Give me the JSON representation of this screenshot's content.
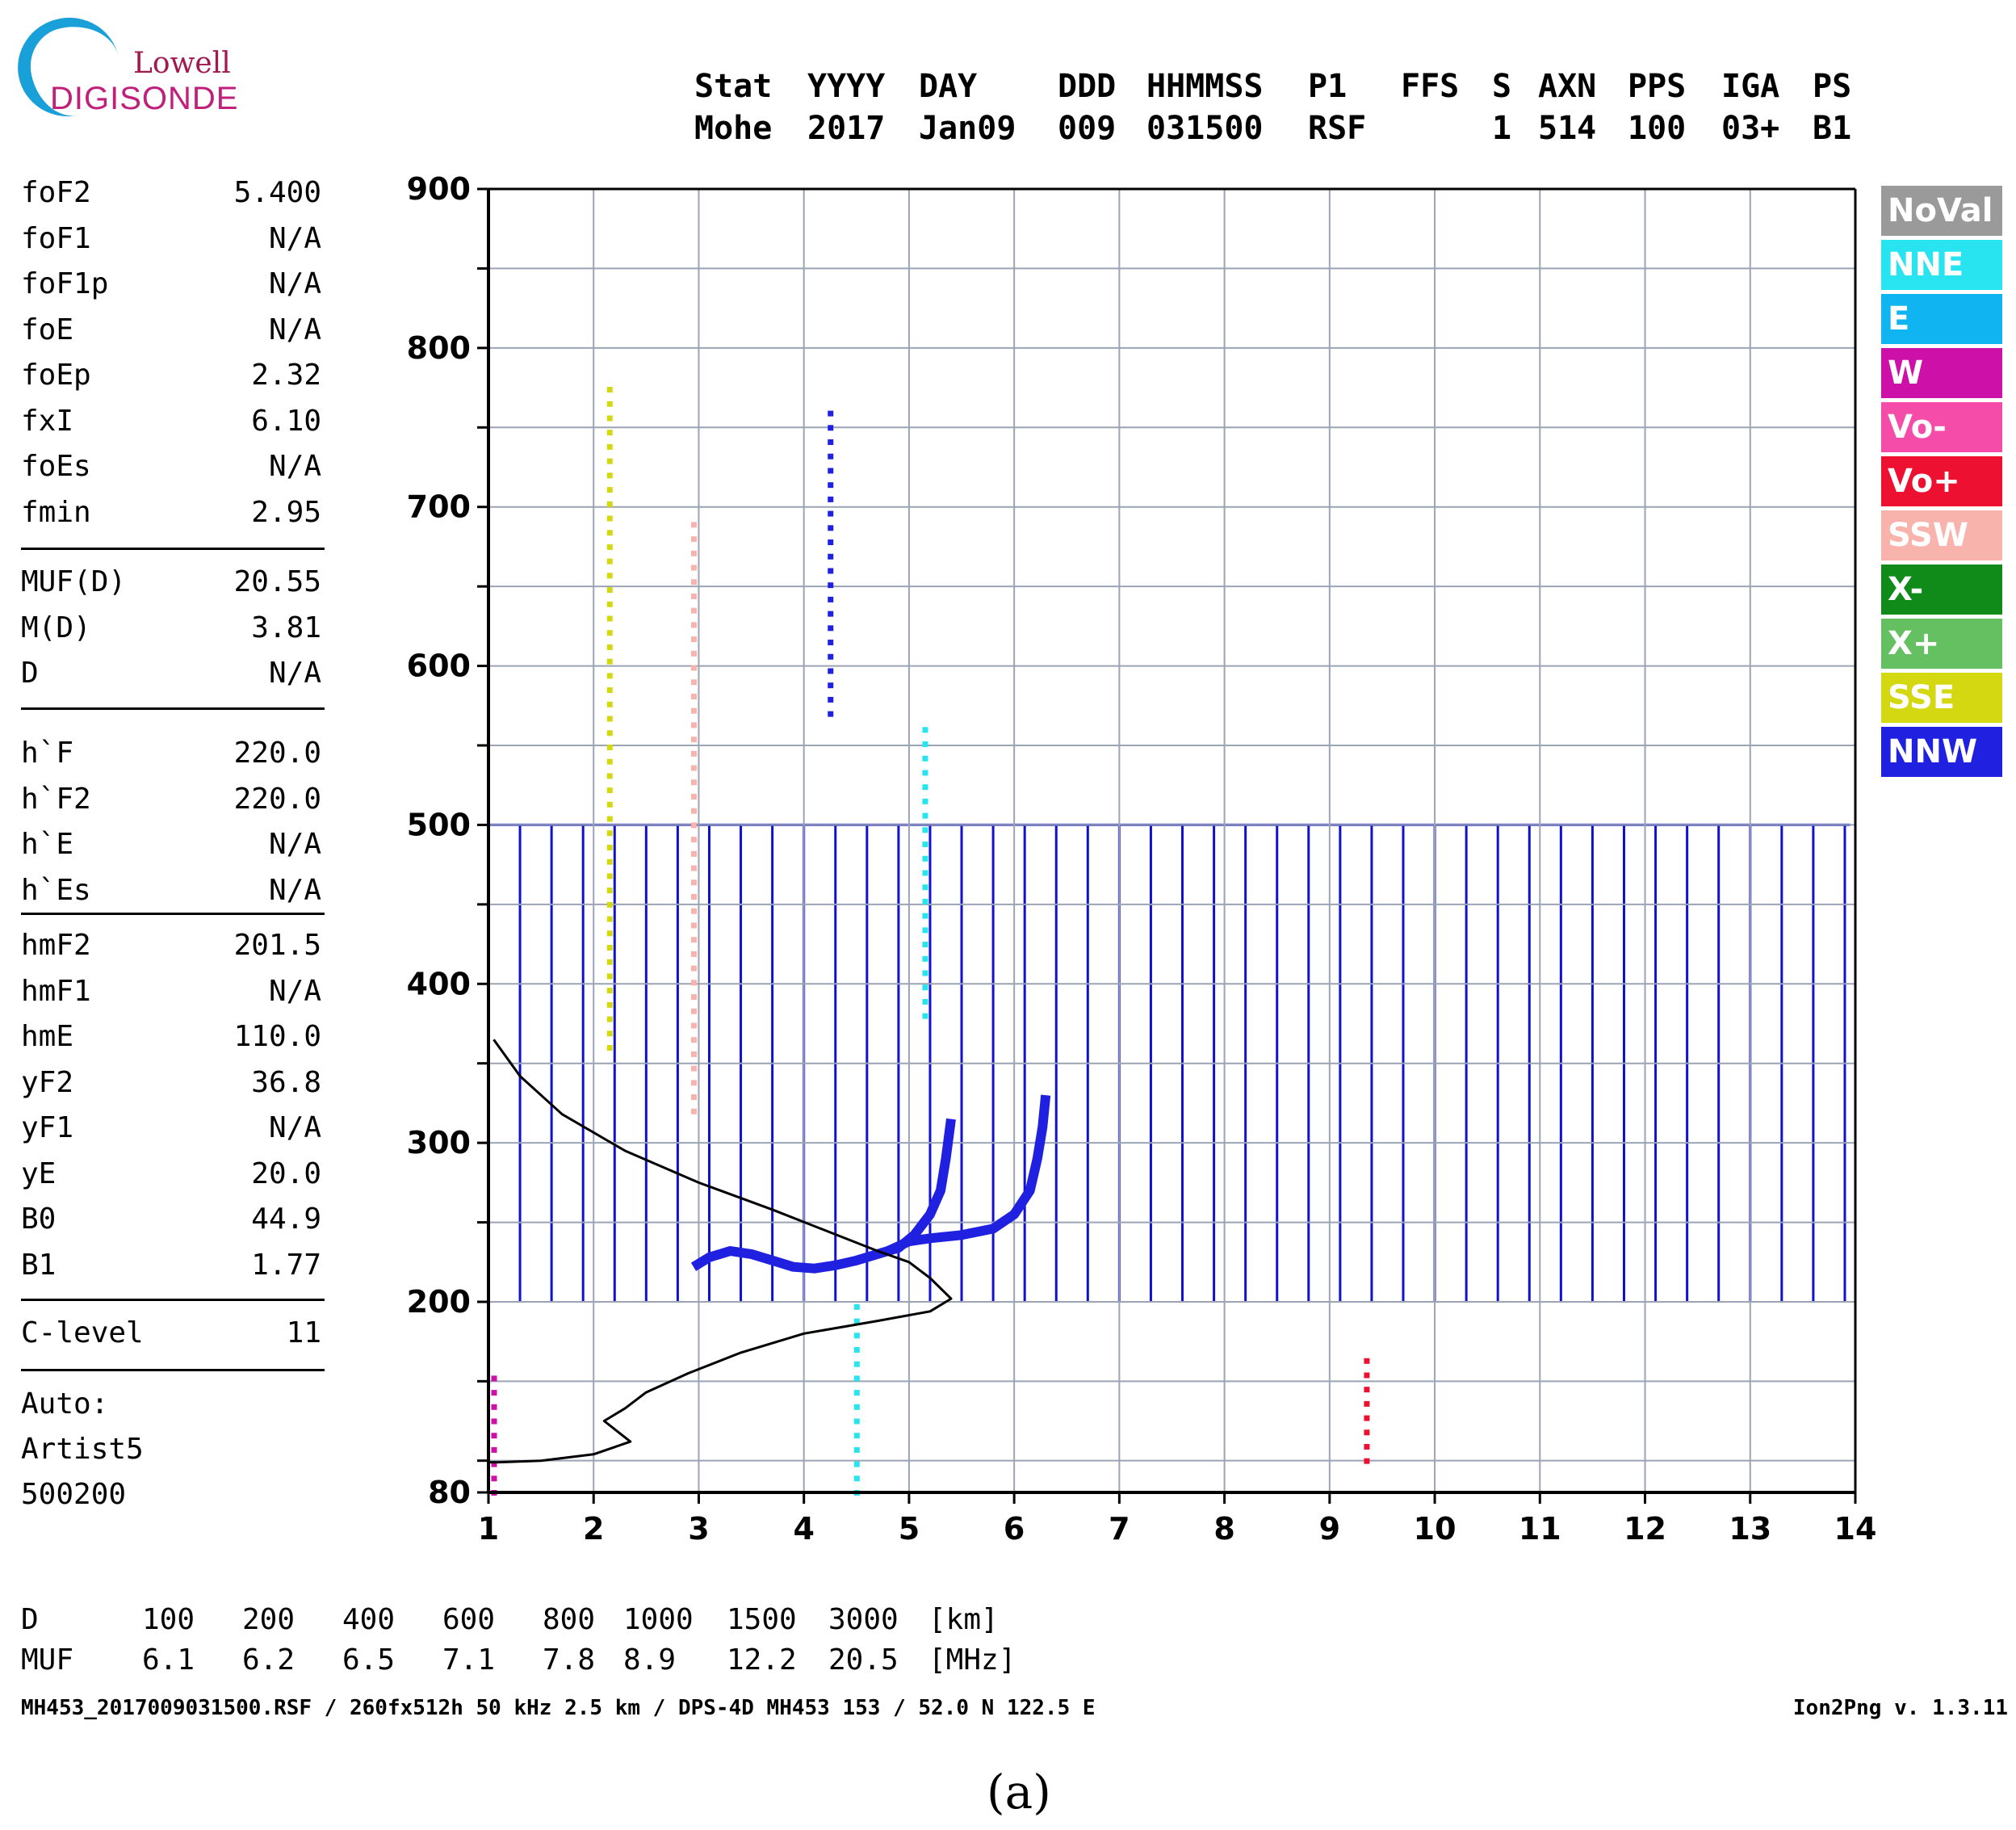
{
  "logo": {
    "line1": "Lowell",
    "line2": "DIGISONDE"
  },
  "header": {
    "labels": [
      "Stat",
      "YYYY",
      "DAY",
      "DDD",
      "HHMMSS",
      "P1",
      "FFS",
      "S",
      "AXN",
      "PPS",
      "IGA",
      "PS"
    ],
    "values": [
      "Mohe",
      "2017",
      "Jan09",
      "009",
      "031500",
      "RSF",
      "",
      "1",
      "514",
      "100",
      "03+",
      "B1"
    ]
  },
  "params": {
    "group1": [
      {
        "name": "foF2",
        "value": "5.400"
      },
      {
        "name": "foF1",
        "value": "N/A"
      },
      {
        "name": "foF1p",
        "value": "N/A"
      },
      {
        "name": "foE",
        "value": "N/A"
      },
      {
        "name": "foEp",
        "value": "2.32"
      },
      {
        "name": "fxI",
        "value": "6.10"
      },
      {
        "name": "foEs",
        "value": "N/A"
      },
      {
        "name": "fmin",
        "value": "2.95"
      }
    ],
    "group2": [
      {
        "name": "MUF(D)",
        "value": "20.55"
      },
      {
        "name": "M(D)",
        "value": "3.81"
      },
      {
        "name": "D",
        "value": "N/A"
      }
    ],
    "group3": [
      {
        "name": "h`F",
        "value": "220.0"
      },
      {
        "name": "h`F2",
        "value": "220.0"
      },
      {
        "name": "h`E",
        "value": "N/A"
      },
      {
        "name": "h`Es",
        "value": "N/A"
      }
    ],
    "group4": [
      {
        "name": "hmF2",
        "value": "201.5"
      },
      {
        "name": "hmF1",
        "value": "N/A"
      },
      {
        "name": "hmE",
        "value": "110.0"
      },
      {
        "name": "yF2",
        "value": "36.8"
      },
      {
        "name": "yF1",
        "value": "N/A"
      },
      {
        "name": "yE",
        "value": "20.0"
      },
      {
        "name": "B0",
        "value": "44.9"
      },
      {
        "name": "B1",
        "value": "1.77"
      }
    ],
    "group5": [
      {
        "name": "C-level",
        "value": "11"
      }
    ],
    "auto_lines": [
      "Auto:",
      "Artist5",
      "500200"
    ]
  },
  "legend": [
    {
      "label": "NoVal",
      "color": "#9a9a9a"
    },
    {
      "label": "NNE",
      "color": "#28e4f0"
    },
    {
      "label": "E",
      "color": "#10b4f0"
    },
    {
      "label": "W",
      "color": "#cc10a8"
    },
    {
      "label": "Vo-",
      "color": "#f44ca8"
    },
    {
      "label": "Vo+",
      "color": "#ee1030"
    },
    {
      "label": "SSW",
      "color": "#f8b4ac"
    },
    {
      "label": "X-",
      "color": "#108a18"
    },
    {
      "label": "X+",
      "color": "#64c060"
    },
    {
      "label": "SSE",
      "color": "#d4d810"
    },
    {
      "label": "NNW",
      "color": "#2020e0"
    }
  ],
  "chart_data": {
    "type": "scatter",
    "xlim": [
      1,
      14
    ],
    "ylim": [
      80,
      900
    ],
    "x_ticks": [
      "1",
      "2",
      "3",
      "4",
      "5",
      "6",
      "7",
      "8",
      "9",
      "10",
      "11",
      "12",
      "13",
      "14"
    ],
    "y_ticks": [
      "80",
      "200",
      "300",
      "400",
      "500",
      "600",
      "700",
      "800",
      "900"
    ],
    "grid": true,
    "ordinary_trace": {
      "color": "NNW",
      "points": [
        [
          2.95,
          222
        ],
        [
          3.1,
          228
        ],
        [
          3.3,
          232
        ],
        [
          3.5,
          230
        ],
        [
          3.7,
          226
        ],
        [
          3.9,
          222
        ],
        [
          4.1,
          221
        ],
        [
          4.3,
          223
        ],
        [
          4.5,
          226
        ],
        [
          4.7,
          230
        ],
        [
          4.9,
          234
        ],
        [
          5.05,
          242
        ],
        [
          5.2,
          255
        ],
        [
          5.3,
          270
        ],
        [
          5.35,
          290
        ],
        [
          5.4,
          315
        ]
      ]
    },
    "extraordinary_trace": {
      "color": "NNW",
      "points": [
        [
          4.8,
          232
        ],
        [
          5.0,
          238
        ],
        [
          5.2,
          240
        ],
        [
          5.5,
          242
        ],
        [
          5.8,
          246
        ],
        [
          6.0,
          255
        ],
        [
          6.15,
          270
        ],
        [
          6.22,
          290
        ],
        [
          6.27,
          310
        ],
        [
          6.3,
          330
        ]
      ]
    },
    "profile_curve": {
      "color": "#000000",
      "points": [
        [
          1.05,
          365
        ],
        [
          1.3,
          342
        ],
        [
          1.7,
          318
        ],
        [
          2.3,
          295
        ],
        [
          3.0,
          275
        ],
        [
          3.7,
          258
        ],
        [
          4.2,
          245
        ],
        [
          4.7,
          232
        ],
        [
          5.0,
          225
        ],
        [
          5.2,
          215
        ],
        [
          5.4,
          202
        ],
        [
          5.2,
          194
        ],
        [
          4.7,
          188
        ],
        [
          4.0,
          180
        ],
        [
          3.4,
          168
        ],
        [
          2.9,
          155
        ],
        [
          2.5,
          143
        ],
        [
          2.3,
          133
        ],
        [
          2.1,
          125
        ],
        [
          2.35,
          112
        ],
        [
          2.0,
          104
        ],
        [
          1.5,
          100
        ],
        [
          1.1,
          99
        ],
        [
          1.0,
          99
        ]
      ]
    },
    "vertical_lines_range": [
      200,
      500
    ],
    "vertical_lines_color": "#1010d0"
  },
  "bottom": {
    "d_label": "D",
    "d_values": [
      "100",
      "200",
      "400",
      "600",
      "800",
      "1000",
      "1500",
      "3000",
      "[km]"
    ],
    "muf_label": "MUF",
    "muf_values": [
      "6.1",
      "6.2",
      "6.5",
      "7.1",
      "7.8",
      "8.9",
      "12.2",
      "20.5",
      "[MHz]"
    ],
    "footer_left": "MH453_2017009031500.RSF / 260fx512h 50 kHz 2.5 km / DPS-4D MH453 153 / 52.0 N 122.5 E",
    "footer_right": "Ion2Png v. 1.3.11"
  },
  "caption": "(a)"
}
